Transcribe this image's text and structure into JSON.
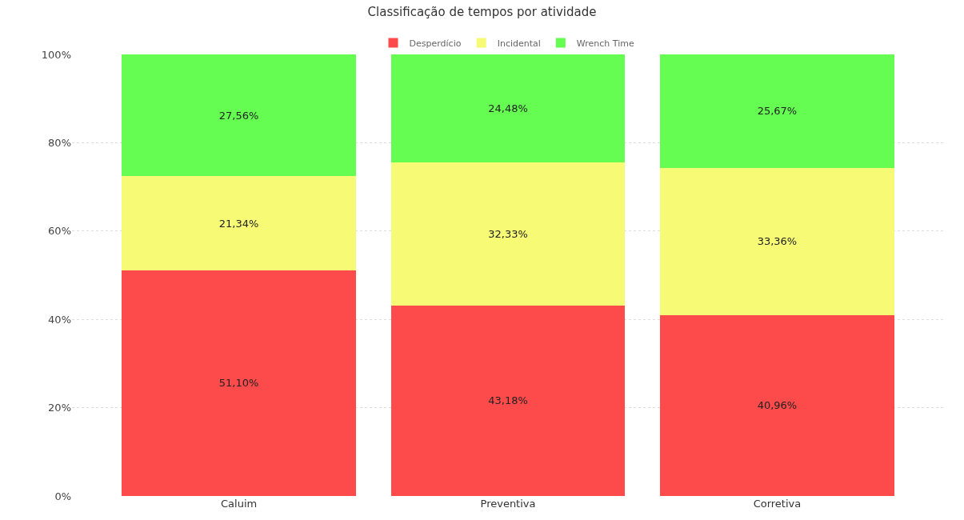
{
  "chart_data": {
    "type": "bar",
    "stacked": true,
    "title": "Classificação de tempos por atividade",
    "categories": [
      "Caluim",
      "Preventiva",
      "Corretiva"
    ],
    "series": [
      {
        "name": "Desperdício",
        "color": "#fd4a4a",
        "values": [
          51.1,
          43.18,
          40.96
        ],
        "value_labels": [
          "51,10%",
          "43,18%",
          "40,96%"
        ]
      },
      {
        "name": "Incidental",
        "color": "#f7fa75",
        "values": [
          21.34,
          32.33,
          33.36
        ],
        "value_labels": [
          "21,34%",
          "32,33%",
          "33,36%"
        ]
      },
      {
        "name": "Wrench Time",
        "color": "#65fd52",
        "values": [
          27.56,
          24.48,
          25.67
        ],
        "value_labels": [
          "27,56%",
          "24,48%",
          "25,67%"
        ]
      }
    ],
    "ylim": [
      0,
      100
    ],
    "yticks": [
      {
        "value": 0,
        "label": "0%"
      },
      {
        "value": 20,
        "label": "20%"
      },
      {
        "value": 40,
        "label": "40%"
      },
      {
        "value": 60,
        "label": "60%"
      },
      {
        "value": 80,
        "label": "80%"
      },
      {
        "value": 100,
        "label": "100%"
      }
    ],
    "grid": "y",
    "legend": "top"
  }
}
